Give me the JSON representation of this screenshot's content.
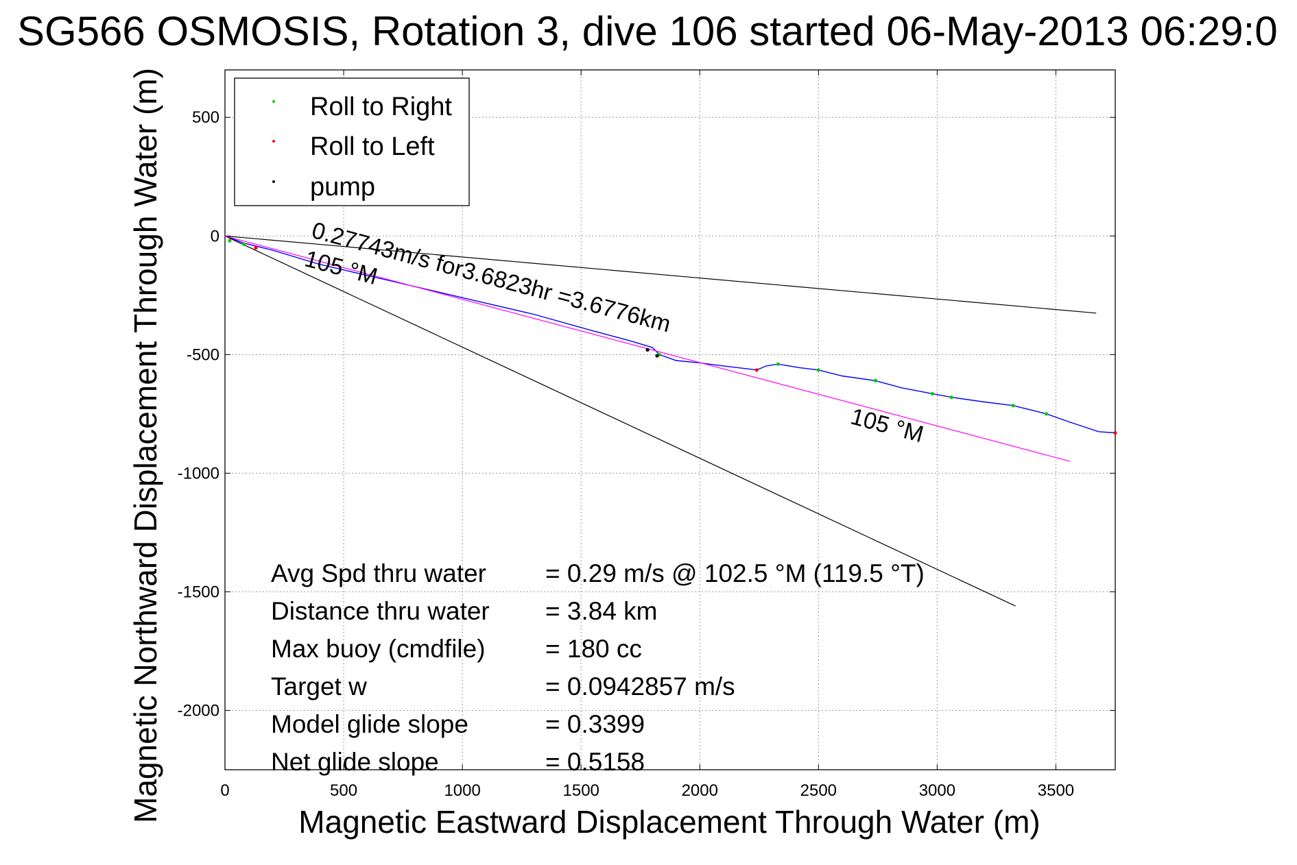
{
  "chart_data": {
    "type": "line",
    "title": "SG566 OSMOSIS, Rotation 3, dive 106 started 06-May-2013 06:29:0",
    "xlabel": "Magnetic Eastward Displacement Through Water (m)",
    "ylabel": "Magnetic Northward Displacement Through Water (m)",
    "xlim": [
      0,
      3750
    ],
    "ylim": [
      -2250,
      700
    ],
    "grid": true,
    "legend_position": "top-left",
    "x_ticks": [
      0,
      500,
      1000,
      1500,
      2000,
      2500,
      3000,
      3500
    ],
    "x_tick_labels": [
      "0",
      "500",
      "1000",
      "1500",
      "2000",
      "2500",
      "3000",
      "3500"
    ],
    "y_ticks": [
      500,
      0,
      -500,
      -1000,
      -1500,
      -2000
    ],
    "y_tick_labels": [
      "500",
      "0",
      "-500",
      "-1000",
      "-1500",
      "-2000"
    ],
    "legend": [
      {
        "label": "Roll to Right",
        "color": "#00cc00"
      },
      {
        "label": "Roll to Left",
        "color": "#ff0000"
      },
      {
        "label": "pump",
        "color": "#000000"
      }
    ],
    "series": [
      {
        "name": "track",
        "color": "#0000ff",
        "x": [
          0,
          80,
          200,
          400,
          700,
          1000,
          1300,
          1550,
          1700,
          1800,
          1830,
          1900,
          2000,
          2100,
          2200,
          2240,
          2280,
          2330,
          2420,
          2500,
          2600,
          2740,
          2850,
          2980,
          3060,
          3200,
          3320,
          3460,
          3560,
          3680,
          3750
        ],
        "y": [
          0,
          -30,
          -60,
          -120,
          -190,
          -260,
          -330,
          -400,
          -440,
          -470,
          -500,
          -525,
          -535,
          -548,
          -560,
          -565,
          -548,
          -540,
          -555,
          -565,
          -590,
          -610,
          -640,
          -665,
          -680,
          -700,
          -715,
          -750,
          -785,
          -825,
          -830
        ]
      },
      {
        "name": "heading line 105 °M (long)",
        "color": "#000000",
        "x": [
          0,
          3330
        ],
        "y": [
          0,
          -1560
        ]
      },
      {
        "name": "heading line 105 °M (short)",
        "color": "#000000",
        "x": [
          0,
          3670
        ],
        "y": [
          0,
          -325
        ]
      },
      {
        "name": "dead reckoning 105 °M",
        "color": "#ff00ff",
        "x": [
          0,
          3560
        ],
        "y": [
          0,
          -950
        ]
      }
    ],
    "roll_right_points": [
      {
        "x": 20,
        "y": -20
      },
      {
        "x": 80,
        "y": -35
      },
      {
        "x": 1830,
        "y": -500
      },
      {
        "x": 2330,
        "y": -540
      },
      {
        "x": 2500,
        "y": -565
      },
      {
        "x": 2740,
        "y": -610
      },
      {
        "x": 2980,
        "y": -665
      },
      {
        "x": 3060,
        "y": -680
      },
      {
        "x": 3320,
        "y": -715
      },
      {
        "x": 3460,
        "y": -750
      }
    ],
    "roll_left_points": [
      {
        "x": 130,
        "y": -50
      },
      {
        "x": 2240,
        "y": -565
      },
      {
        "x": 3750,
        "y": -830
      }
    ],
    "pump_points": [
      {
        "x": 1780,
        "y": -480
      },
      {
        "x": 1820,
        "y": -505
      }
    ],
    "annotations": [
      {
        "text": "0.27743m/s for3.6823hr =3.6776km",
        "x": 360,
        "y": -5,
        "angle_deg": 14.9
      },
      {
        "text": "105 °M",
        "x": 330,
        "y": -125,
        "angle_deg": 14.9
      },
      {
        "text": "105 °M",
        "x": 2630,
        "y": -790,
        "angle_deg": 14.9
      }
    ],
    "stats": [
      {
        "label": "Avg Spd thru water",
        "value": "=  0.29 m/s @ 102.5 °M (119.5 °T)"
      },
      {
        "label": "Distance thru water",
        "value": "=  3.84 km"
      },
      {
        "label": "Max buoy (cmdfile)",
        "value": "= 180 cc"
      },
      {
        "label": "Target w",
        "value": "= 0.0942857 m/s"
      },
      {
        "label": "Model glide slope",
        "value": "= 0.3399"
      },
      {
        "label": "Net glide slope",
        "value": "= 0.5158"
      }
    ]
  }
}
